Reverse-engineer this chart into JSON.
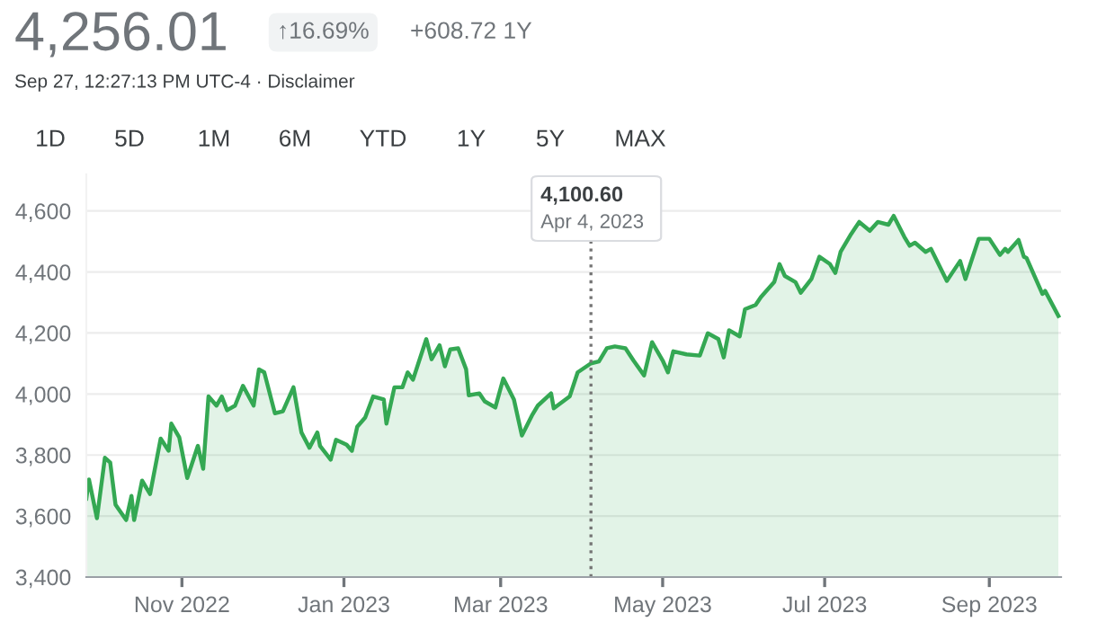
{
  "chart_data": {
    "type": "area",
    "title": "4,256.01",
    "subtitle": "Sep 27, 12:27:13 PM UTC-4 · Disclaimer",
    "annotations": [
      "↑16.69%",
      "+608.72 1Y",
      "1D",
      "5D",
      "1M",
      "6M",
      "YTD",
      "1Y",
      "5Y",
      "MAX",
      "4,100.60",
      "Apr 4, 2023"
    ],
    "x": [
      "2022-09-26",
      "2022-09-27",
      "2022-09-30",
      "2022-10-03",
      "2022-10-05",
      "2022-10-07",
      "2022-10-11",
      "2022-10-13",
      "2022-10-14",
      "2022-10-17",
      "2022-10-20",
      "2022-10-24",
      "2022-10-27",
      "2022-10-28",
      "2022-10-31",
      "2022-11-03",
      "2022-11-07",
      "2022-11-09",
      "2022-11-11",
      "2022-11-14",
      "2022-11-16",
      "2022-11-18",
      "2022-11-21",
      "2022-11-24",
      "2022-11-28",
      "2022-11-30",
      "2022-12-02",
      "2022-12-06",
      "2022-12-09",
      "2022-12-13",
      "2022-12-16",
      "2022-12-19",
      "2022-12-22",
      "2022-12-23",
      "2022-12-27",
      "2022-12-29",
      "2023-01-02",
      "2023-01-04",
      "2023-01-06",
      "2023-01-09",
      "2023-01-12",
      "2023-01-16",
      "2023-01-17",
      "2023-01-20",
      "2023-01-23",
      "2023-01-25",
      "2023-01-27",
      "2023-02-01",
      "2023-02-03",
      "2023-02-06",
      "2023-02-08",
      "2023-02-10",
      "2023-02-13",
      "2023-02-16",
      "2023-02-17",
      "2023-02-21",
      "2023-02-23",
      "2023-02-27",
      "2023-03-02",
      "2023-03-06",
      "2023-03-09",
      "2023-03-13",
      "2023-03-15",
      "2023-03-20",
      "2023-03-21",
      "2023-03-27",
      "2023-03-30",
      "2023-04-04",
      "2023-04-07",
      "2023-04-10",
      "2023-04-13",
      "2023-04-17",
      "2023-04-20",
      "2023-04-24",
      "2023-04-27",
      "2023-05-01",
      "2023-05-03",
      "2023-05-05",
      "2023-05-10",
      "2023-05-15",
      "2023-05-18",
      "2023-05-22",
      "2023-05-24",
      "2023-05-26",
      "2023-05-30",
      "2023-06-01",
      "2023-06-05",
      "2023-06-07",
      "2023-06-12",
      "2023-06-14",
      "2023-06-16",
      "2023-06-20",
      "2023-06-22",
      "2023-06-26",
      "2023-06-29",
      "2023-07-03",
      "2023-07-05",
      "2023-07-07",
      "2023-07-11",
      "2023-07-14",
      "2023-07-18",
      "2023-07-21",
      "2023-07-25",
      "2023-07-27",
      "2023-07-31",
      "2023-08-02",
      "2023-08-04",
      "2023-08-08",
      "2023-08-10",
      "2023-08-16",
      "2023-08-18",
      "2023-08-21",
      "2023-08-23",
      "2023-08-28",
      "2023-09-01",
      "2023-09-05",
      "2023-09-07",
      "2023-09-08",
      "2023-09-12",
      "2023-09-14",
      "2023-09-15",
      "2023-09-21",
      "2023-09-22",
      "2023-09-27"
    ],
    "series": [
      {
        "color": "#34a853",
        "values": [
          3657,
          3720,
          3593,
          3791,
          3775,
          3637,
          3587,
          3666,
          3587,
          3716,
          3672,
          3854,
          3814,
          3903,
          3858,
          3725,
          3830,
          3755,
          3992,
          3962,
          3992,
          3947,
          3962,
          4027,
          3962,
          4081,
          4071,
          3937,
          3943,
          4022,
          3874,
          3824,
          3874,
          3830,
          3785,
          3850,
          3834,
          3814,
          3893,
          3923,
          3992,
          3982,
          3903,
          4022,
          4022,
          4071,
          4047,
          4180,
          4114,
          4160,
          4091,
          4146,
          4150,
          4081,
          3996,
          4002,
          3976,
          3956,
          4051,
          3982,
          3864,
          3933,
          3962,
          4002,
          3953,
          3992,
          4071,
          4100.6,
          4107,
          4150,
          4156,
          4150,
          4110,
          4061,
          4170,
          4110,
          4071,
          4140,
          4130,
          4126,
          4199,
          4180,
          4120,
          4209,
          4189,
          4278,
          4292,
          4318,
          4367,
          4426,
          4387,
          4367,
          4332,
          4377,
          4450,
          4426,
          4397,
          4466,
          4525,
          4564,
          4535,
          4564,
          4555,
          4584,
          4515,
          4486,
          4496,
          4466,
          4476,
          4371,
          4397,
          4436,
          4377,
          4509,
          4509,
          4456,
          4476,
          4466,
          4505,
          4450,
          4446,
          4328,
          4338,
          4256.01
        ]
      }
    ],
    "xlim": [
      "2022-09-26",
      "2023-09-28"
    ],
    "xticks": [
      {
        "value": "2022-11-01",
        "label": "Nov 2022"
      },
      {
        "value": "2023-01-01",
        "label": "Jan 2023"
      },
      {
        "value": "2023-03-01",
        "label": "Mar 2023"
      },
      {
        "value": "2023-05-01",
        "label": "May 2023"
      },
      {
        "value": "2023-07-01",
        "label": "Jul 2023"
      },
      {
        "value": "2023-09-01",
        "label": "Sep 2023"
      }
    ],
    "ylim": [
      3400,
      4720
    ],
    "yticks": [
      {
        "value": 3400,
        "label": "3,400"
      },
      {
        "value": 3600,
        "label": "3,600"
      },
      {
        "value": 3800,
        "label": "3,800"
      },
      {
        "value": 4000,
        "label": "4,000"
      },
      {
        "value": 4200,
        "label": "4,200"
      },
      {
        "value": 4400,
        "label": "4,400"
      },
      {
        "value": 4600,
        "label": "4,600"
      }
    ],
    "grid": "y",
    "ref_lines": [
      {
        "axis": "x",
        "value": "2023-04-04",
        "color": "#757575",
        "line_style": "dotted"
      }
    ]
  }
}
